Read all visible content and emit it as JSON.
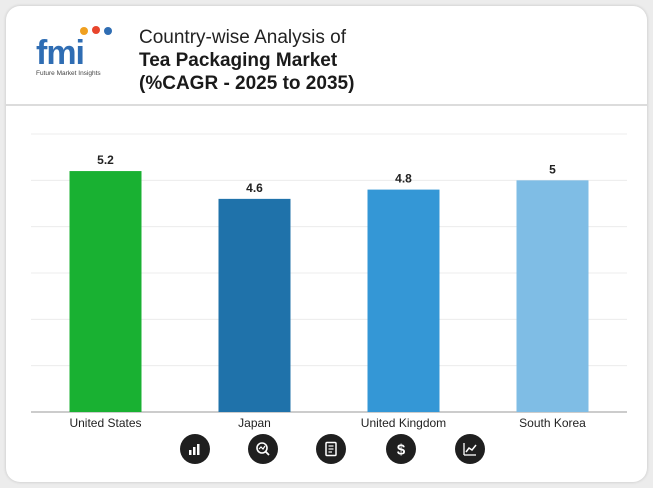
{
  "header": {
    "logo_text": "fmi",
    "logo_tagline": "Future Market Insights",
    "title_line1": "Country-wise Analysis of",
    "title_line2": "Tea Packaging Market",
    "title_line3": "(%CAGR - 2025 to 2035)"
  },
  "chart_data": {
    "type": "bar",
    "categories": [
      "United States",
      "Japan",
      "United Kingdom",
      "South Korea"
    ],
    "values": [
      5.2,
      4.6,
      4.8,
      5
    ],
    "value_labels": [
      "5.2",
      "4.6",
      "4.8",
      "5"
    ],
    "colors": [
      "#19b132",
      "#1f72aa",
      "#3497d6",
      "#7fbde5"
    ],
    "ylim": [
      0,
      6
    ],
    "grid": true
  },
  "footer_icons": [
    {
      "name": "bar-chart-icon"
    },
    {
      "name": "analysis-icon"
    },
    {
      "name": "report-icon"
    },
    {
      "name": "dollar-icon"
    },
    {
      "name": "trend-chart-icon"
    }
  ]
}
